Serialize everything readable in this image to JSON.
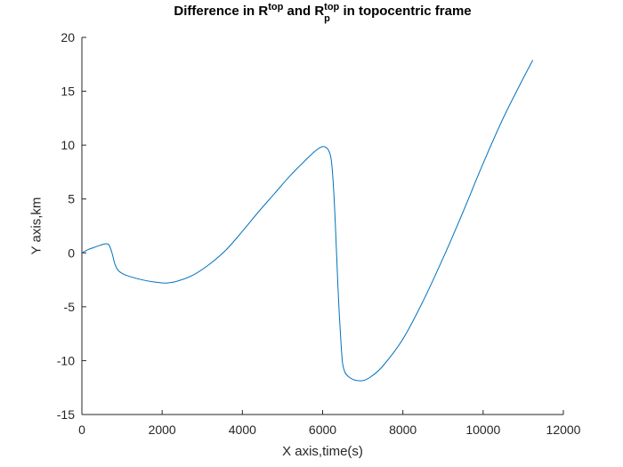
{
  "chart_data": {
    "type": "line",
    "title_parts": {
      "a": "Difference in R",
      "a_sup": "top",
      "b": " and R",
      "b_sup": "top",
      "b_sub": "p",
      "c": " in topocentric frame"
    },
    "xlabel": "X axis,time(s)",
    "ylabel": "Y axis,km",
    "xlim": [
      0,
      12000
    ],
    "ylim": [
      -15,
      20
    ],
    "xticks": [
      0,
      2000,
      4000,
      6000,
      8000,
      10000,
      12000
    ],
    "yticks": [
      -15,
      -10,
      -5,
      0,
      5,
      10,
      15,
      20
    ],
    "grid": false,
    "line_color": "#0072BD",
    "series": [
      {
        "x": [
          0,
          150,
          300,
          450,
          600,
          680,
          750,
          820,
          900,
          1000,
          1200,
          1500,
          1800,
          2100,
          2400,
          2800,
          3200,
          3600,
          4000,
          4400,
          4800,
          5200,
          5600,
          5800,
          5950,
          6050,
          6150,
          6220,
          6280,
          6330,
          6380,
          6420,
          6460,
          6500,
          6560,
          6650,
          6800,
          7000,
          7200,
          7500,
          8000,
          8500,
          9000,
          9500,
          10000,
          10500,
          11000,
          11240
        ],
        "y": [
          0.0,
          0.3,
          0.5,
          0.7,
          0.85,
          0.7,
          0.0,
          -1.0,
          -1.6,
          -1.9,
          -2.2,
          -2.5,
          -2.7,
          -2.8,
          -2.6,
          -2.0,
          -1.0,
          0.3,
          2.0,
          3.8,
          5.5,
          7.2,
          8.7,
          9.4,
          9.8,
          9.85,
          9.5,
          8.5,
          5.5,
          1.5,
          -3.0,
          -6.0,
          -8.5,
          -10.3,
          -11.1,
          -11.5,
          -11.8,
          -11.85,
          -11.5,
          -10.5,
          -8.0,
          -4.5,
          -0.5,
          3.8,
          8.3,
          12.5,
          16.2,
          17.9
        ]
      }
    ]
  }
}
